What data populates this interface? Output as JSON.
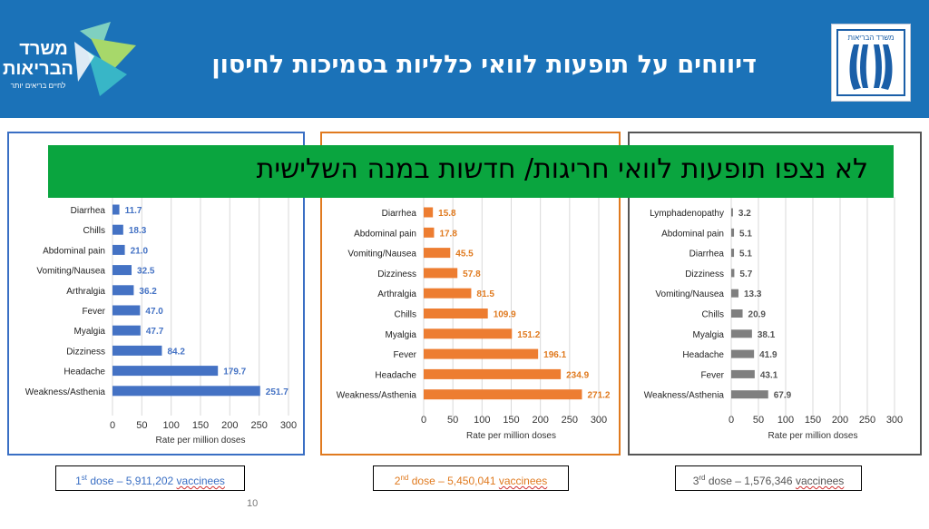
{
  "header": {
    "title": "דיווחים על תופעות לוואי כלליות בסמיכות לחיסון",
    "logo_left": {
      "line1": "משרד",
      "line2": "הבריאות",
      "tagline": "לחיים בריאים יותר"
    },
    "logo_right": {
      "text": "משרד הבריאות"
    }
  },
  "banner": {
    "text": "לא נצפו תופעות לוואי חריגות/ חדשות במנה השלישית",
    "color": "#0aa53f"
  },
  "page_number": "10",
  "doses": [
    {
      "ordinal": "1",
      "suffix": "st",
      "dose_word": "dose",
      "rest": " – 5,911,202 ",
      "vaccinees": "vaccinees",
      "color": "#3a6fc4"
    },
    {
      "ordinal": "2",
      "suffix": "nd",
      "dose_word": "dose",
      "rest": " – 5,450,041 ",
      "vaccinees": "vaccinees",
      "color": "#e07a1f"
    },
    {
      "ordinal": "3",
      "suffix": "rd",
      "dose_word": "dose",
      "rest": " – 1,576,346 ",
      "vaccinees": "vaccinees",
      "color": "#555555"
    }
  ],
  "chart_data": [
    {
      "type": "bar",
      "orientation": "horizontal",
      "xlabel": "Rate per million doses",
      "xlim": [
        0,
        300
      ],
      "xticks": [
        0,
        50,
        100,
        150,
        200,
        250,
        300
      ],
      "grid": true,
      "bar_color": "#4472c4",
      "label_color": "#4472c4",
      "border_color": "#3a6fc4",
      "categories": [
        "Diarrhea",
        "Chills",
        "Abdominal pain",
        "Vomiting/Nausea",
        "Arthralgia",
        "Fever",
        "Myalgia",
        "Dizziness",
        "Headache",
        "Weakness/Asthenia"
      ],
      "values": [
        11.7,
        18.3,
        21.0,
        32.5,
        36.2,
        47.0,
        47.7,
        84.2,
        179.7,
        251.7
      ],
      "value_labels": [
        "11.7",
        "18.3",
        "21.0",
        "32.5",
        "36.2",
        "47.0",
        "47.7",
        "84.2",
        "179.7",
        "251.7"
      ]
    },
    {
      "type": "bar",
      "orientation": "horizontal",
      "xlabel": "Rate per million doses",
      "xlim": [
        0,
        300
      ],
      "xticks": [
        0,
        50,
        100,
        150,
        200,
        250,
        300
      ],
      "grid": true,
      "bar_color": "#ed7d31",
      "label_color": "#e07a1f",
      "border_color": "#e07a1f",
      "categories": [
        "Diarrhea",
        "Abdominal pain",
        "Vomiting/Nausea",
        "Dizziness",
        "Arthralgia",
        "Chills",
        "Myalgia",
        "Fever",
        "Headache",
        "Weakness/Asthenia"
      ],
      "values": [
        15.8,
        17.8,
        45.5,
        57.8,
        81.5,
        109.9,
        151.2,
        196.1,
        234.9,
        271.2
      ],
      "value_labels": [
        "15.8",
        "17.8",
        "45.5",
        "57.8",
        "81.5",
        "109.9",
        "151.2",
        "196.1",
        "234.9",
        "271.2"
      ]
    },
    {
      "type": "bar",
      "orientation": "horizontal",
      "xlabel": "Rate per million doses",
      "xlim": [
        0,
        300
      ],
      "xticks": [
        0,
        50,
        100,
        150,
        200,
        250,
        300
      ],
      "grid": true,
      "bar_color": "#7f7f7f",
      "label_color": "#555555",
      "border_color": "#555555",
      "categories": [
        "Lymphadenopathy",
        "Abdominal pain",
        "Diarrhea",
        "Dizziness",
        "Vomiting/Nausea",
        "Chills",
        "Myalgia",
        "Headache",
        "Fever",
        "Weakness/Asthenia"
      ],
      "values": [
        3.2,
        5.1,
        5.1,
        5.7,
        13.3,
        20.9,
        38.1,
        41.9,
        43.1,
        67.9
      ],
      "value_labels": [
        "3.2",
        "5.1",
        "5.1",
        "5.7",
        "13.3",
        "20.9",
        "38.1",
        "41.9",
        "43.1",
        "67.9"
      ]
    }
  ]
}
